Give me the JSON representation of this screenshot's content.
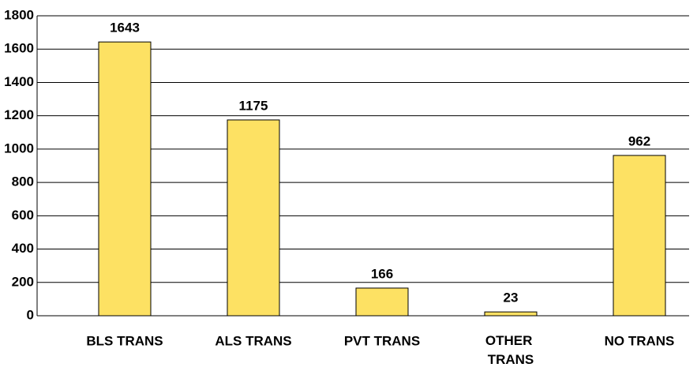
{
  "chart_data": {
    "type": "bar",
    "categories": [
      "BLS TRANS",
      "ALS TRANS",
      "PVT TRANS",
      "OTHER TRANS",
      "NO TRANS"
    ],
    "values": [
      1643,
      1175,
      166,
      23,
      962
    ],
    "color": "#fde163",
    "ylim": [
      0,
      1800
    ],
    "yticks": [
      0,
      200,
      400,
      600,
      800,
      1000,
      1200,
      1400,
      1600,
      1800
    ],
    "grid": true
  }
}
